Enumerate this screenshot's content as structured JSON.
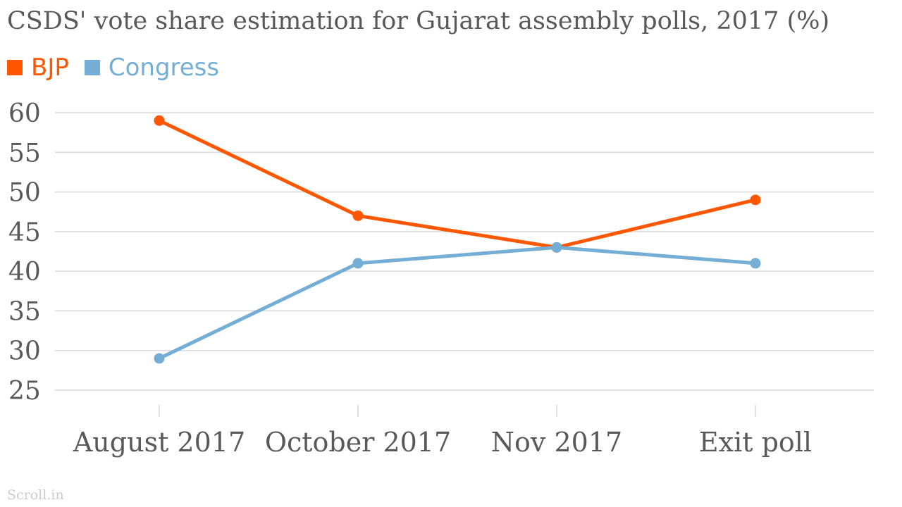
{
  "title": "CSDS' vote share estimation for Gujarat assembly polls, 2017 (%)",
  "credit": "Scroll.in",
  "colors": {
    "bjp": "#ff5600",
    "congress": "#74aed5",
    "grid": "#d9d9d9",
    "text": "#595959"
  },
  "chart_data": {
    "type": "line",
    "title": "CSDS' vote share estimation for Gujarat assembly polls, 2017 (%)",
    "categories": [
      "August 2017",
      "October 2017",
      "Nov 2017",
      "Exit poll"
    ],
    "series": [
      {
        "name": "BJP",
        "color": "#ff5600",
        "values": [
          59,
          47,
          43,
          49
        ]
      },
      {
        "name": "Congress",
        "color": "#74aed5",
        "values": [
          29,
          41,
          43,
          41
        ]
      }
    ],
    "y_ticks": [
      60,
      55,
      50,
      45,
      40,
      35,
      30,
      25
    ],
    "ylim": [
      25,
      60
    ],
    "grid": true,
    "legend": "top-left"
  }
}
